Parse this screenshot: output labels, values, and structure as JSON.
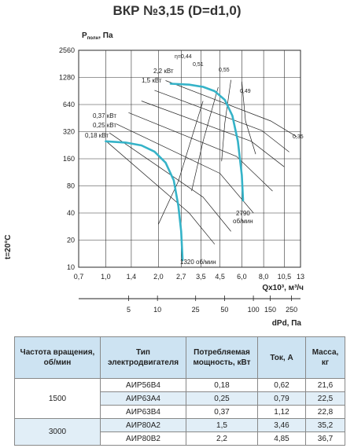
{
  "title": "ВКР №3,15 (D=d1,0)",
  "chart_data": {
    "type": "line",
    "title": "ВКР №3,15 (D=d1,0)",
    "y_axis": {
      "label_main": "P",
      "label_sub": "полн",
      "label_unit": ", Па",
      "scale": "log",
      "ticks": [
        10,
        20,
        40,
        80,
        160,
        320,
        640,
        1280,
        2560
      ]
    },
    "x_axis": {
      "label": "Qx10³, м³/ч",
      "scale": "log",
      "ticks": [
        "0,7",
        "1,0",
        "1,4",
        "2,0",
        "2,7",
        "3,5",
        "4,5",
        "6,0",
        "8,0",
        "10,5",
        "13"
      ]
    },
    "x_axis_secondary": {
      "label": "dPd, Па",
      "ticks": [
        "5",
        "10",
        "25",
        "50",
        "100",
        "150",
        "250"
      ]
    },
    "temperature_label": "t=20°C",
    "speed_labels": [
      "2790",
      "об/мин",
      "1320 об/мин"
    ],
    "power_labels": [
      "2,2 кВт",
      "1,5 кВт",
      "0,37 кВт",
      "0,25 кВт",
      "0,18 кВт"
    ],
    "efficiency_labels": [
      "η=0,44",
      "0,51",
      "0,55",
      "0,49",
      "0,35"
    ],
    "series": [
      {
        "points": [
          [
            1.0,
            250
          ],
          [
            1.3,
            242
          ],
          [
            1.6,
            225
          ],
          [
            1.9,
            192
          ],
          [
            2.2,
            145
          ],
          [
            2.45,
            92
          ],
          [
            2.6,
            48
          ],
          [
            2.7,
            25
          ],
          [
            2.75,
            12
          ]
        ]
      },
      {
        "points": [
          [
            2.35,
            1090
          ],
          [
            3.0,
            1065
          ],
          [
            3.6,
            1005
          ],
          [
            4.2,
            900
          ],
          [
            4.8,
            720
          ],
          [
            5.3,
            480
          ],
          [
            5.7,
            250
          ],
          [
            6.0,
            105
          ],
          [
            6.1,
            55
          ]
        ]
      }
    ],
    "colors": {
      "curve": "#35b3c8",
      "grid": "#333333",
      "axes": "#111111"
    }
  },
  "table": {
    "headers": [
      "Частота вращения, об/мин",
      "Тип электродвигателя",
      "Потребляемая мощность, кВт",
      "Ток, А",
      "Масса, кг"
    ],
    "groups": [
      {
        "speed": "1500",
        "rows": [
          [
            "АИР56В4",
            "0,18",
            "0,62",
            "21,6"
          ],
          [
            "АИР63А4",
            "0,25",
            "0,79",
            "22,5"
          ],
          [
            "АИР63В4",
            "0,37",
            "1,12",
            "22,8"
          ]
        ]
      },
      {
        "speed": "3000",
        "rows": [
          [
            "АИР80А2",
            "1,5",
            "3,46",
            "35,2"
          ],
          [
            "АИР80В2",
            "2,2",
            "4,85",
            "36,7"
          ]
        ]
      }
    ]
  }
}
